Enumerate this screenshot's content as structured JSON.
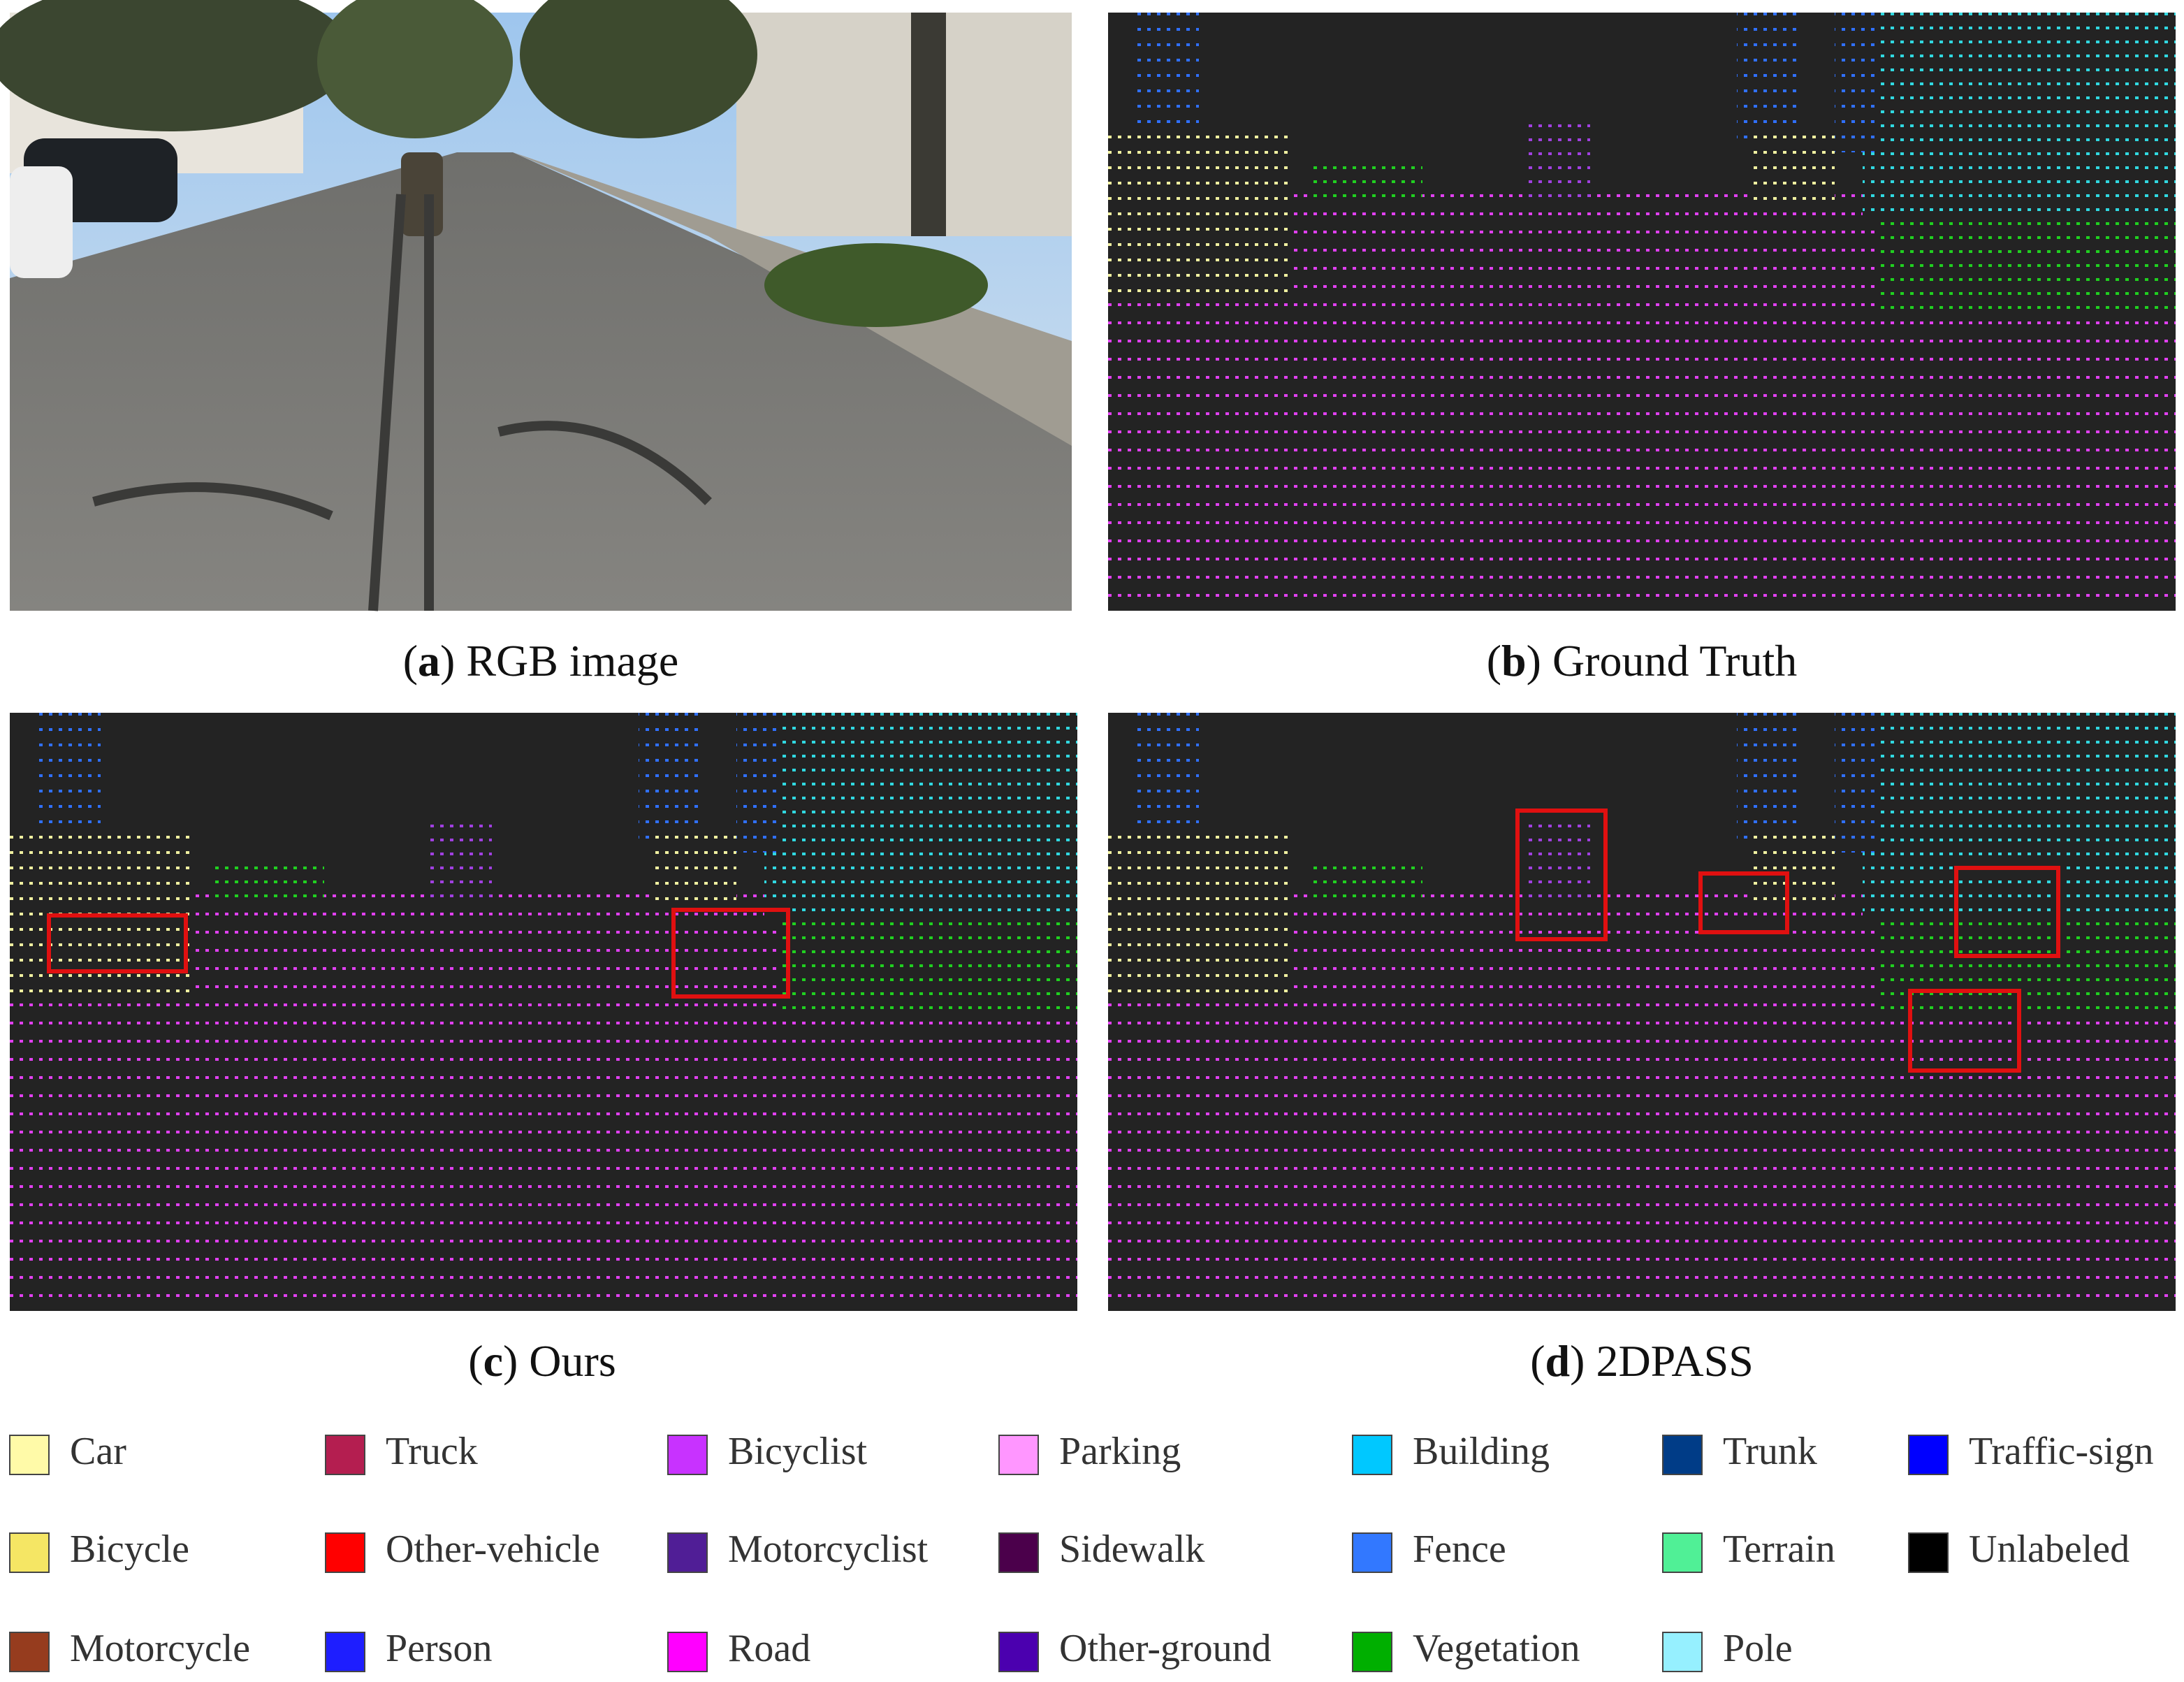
{
  "panels": [
    {
      "open": "(",
      "letter": "a",
      "close": ")",
      "caption": "RGB image"
    },
    {
      "open": "(",
      "letter": "b",
      "close": ")",
      "caption": "Ground Truth"
    },
    {
      "open": "(",
      "letter": "c",
      "close": ")",
      "caption": "Ours"
    },
    {
      "open": "(",
      "letter": "d",
      "close": ")",
      "caption": "2DPASS"
    }
  ],
  "legend": [
    {
      "name": "Car",
      "color": "#fffaa8"
    },
    {
      "name": "Truck",
      "color": "#b41e50"
    },
    {
      "name": "Bicyclist",
      "color": "#c832ff"
    },
    {
      "name": "Parking",
      "color": "#ff96ff"
    },
    {
      "name": "Building",
      "color": "#00c8ff"
    },
    {
      "name": "Trunk",
      "color": "#003c87"
    },
    {
      "name": "Traffic-sign",
      "color": "#0000ff"
    },
    {
      "name": "Bicycle",
      "color": "#f5e664"
    },
    {
      "name": "Other-vehicle",
      "color": "#ff0000"
    },
    {
      "name": "Motorcyclist",
      "color": "#501e96"
    },
    {
      "name": "Sidewalk",
      "color": "#4b004b"
    },
    {
      "name": "Fence",
      "color": "#3278ff"
    },
    {
      "name": "Terrain",
      "color": "#50f096"
    },
    {
      "name": "Unlabeled",
      "color": "#000000"
    },
    {
      "name": "Motorcycle",
      "color": "#963c1e"
    },
    {
      "name": "Person",
      "color": "#1e1eff"
    },
    {
      "name": "Road",
      "color": "#ff00ff"
    },
    {
      "name": "Other-ground",
      "color": "#4b00af"
    },
    {
      "name": "Vegetation",
      "color": "#00af00"
    },
    {
      "name": "Pole",
      "color": "#96f0ff"
    }
  ]
}
